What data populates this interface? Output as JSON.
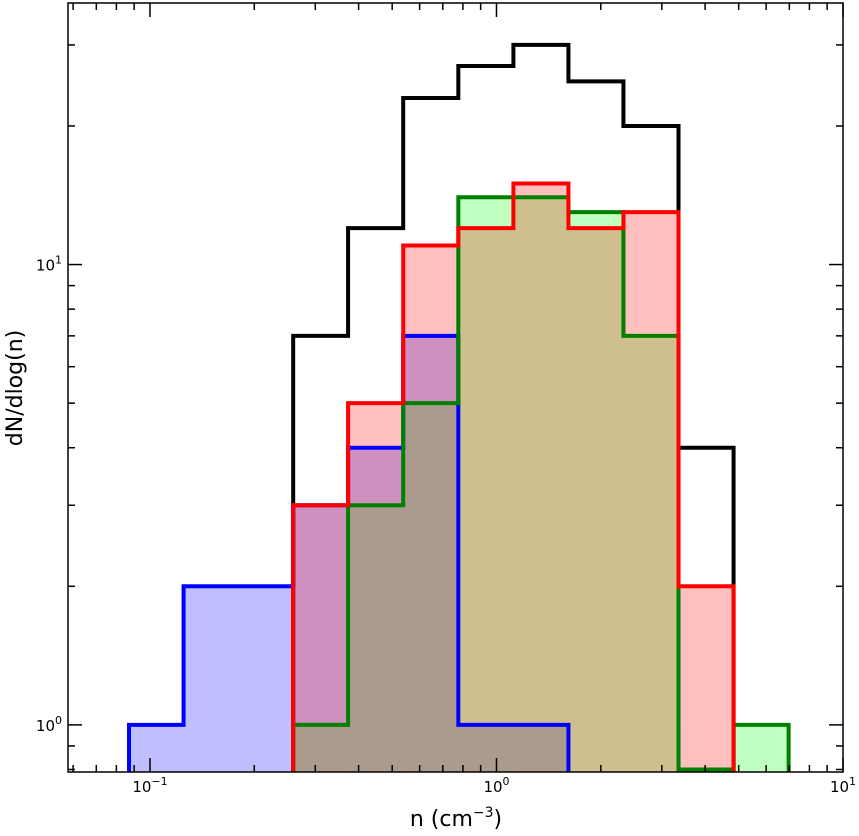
{
  "chart_data": {
    "type": "histogram",
    "xscale": "log",
    "yscale": "log",
    "xlim": [
      0.058,
      10
    ],
    "ylim": [
      0.79,
      37
    ],
    "xlabel": "n (cm",
    "xlabel_sup": "−3",
    "xlabel_end": ")",
    "ylabel": "dN/dlog(n)",
    "x_ticks": [
      {
        "value": 0.1,
        "base": "10",
        "exp": "−1"
      },
      {
        "value": 1,
        "base": "10",
        "exp": "0"
      },
      {
        "value": 10,
        "base": "10",
        "exp": "1"
      }
    ],
    "y_ticks": [
      {
        "value": 1,
        "base": "10",
        "exp": "0"
      },
      {
        "value": 10,
        "base": "10",
        "exp": "1"
      }
    ],
    "grid": false,
    "legend": "none",
    "series": [
      {
        "color": "#000000",
        "fill": "none",
        "edges": [
          0.259,
          0.373,
          0.538,
          0.776,
          1.119,
          1.613,
          2.325,
          3.352,
          4.833
        ],
        "values": [
          7,
          12,
          23,
          27,
          30,
          25,
          20,
          4
        ]
      },
      {
        "color": "#0000ff",
        "fill": "#0000ff",
        "fill_opacity": 0.25,
        "edges": [
          0.087,
          0.125,
          0.259,
          0.373,
          0.538,
          0.776,
          1.119,
          1.613
        ],
        "values": [
          1,
          2,
          3,
          4,
          7,
          1,
          1
        ]
      },
      {
        "color": "#008000",
        "fill": "#00ff00",
        "fill_opacity": 0.25,
        "edges": [
          0.259,
          0.373,
          0.538,
          0.776,
          1.119,
          1.613,
          2.325,
          3.352,
          4.833,
          6.968
        ],
        "values": [
          1,
          3,
          5,
          14,
          14,
          13,
          7,
          0.8,
          1
        ]
      },
      {
        "color": "#ff0000",
        "fill": "#ff0000",
        "fill_opacity": 0.25,
        "edges": [
          0.259,
          0.373,
          0.538,
          0.776,
          1.119,
          1.613,
          2.325,
          3.352,
          4.833
        ],
        "values": [
          3,
          5,
          11,
          12,
          15,
          12,
          13,
          2
        ]
      }
    ]
  }
}
